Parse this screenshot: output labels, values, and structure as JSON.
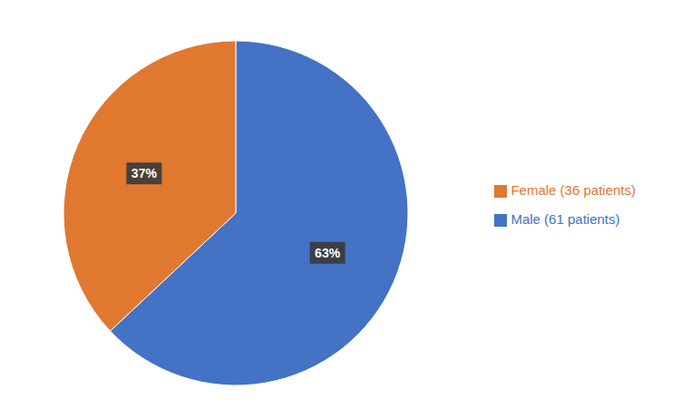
{
  "chart_data": {
    "type": "pie",
    "categories": [
      "Male (61 patients)",
      "Female (36 patients)"
    ],
    "values": [
      63,
      37
    ],
    "value_labels": [
      "63%",
      "37%"
    ],
    "colors": [
      "#4472C4",
      "#E07830"
    ],
    "data_labels": true,
    "legend": "right"
  }
}
